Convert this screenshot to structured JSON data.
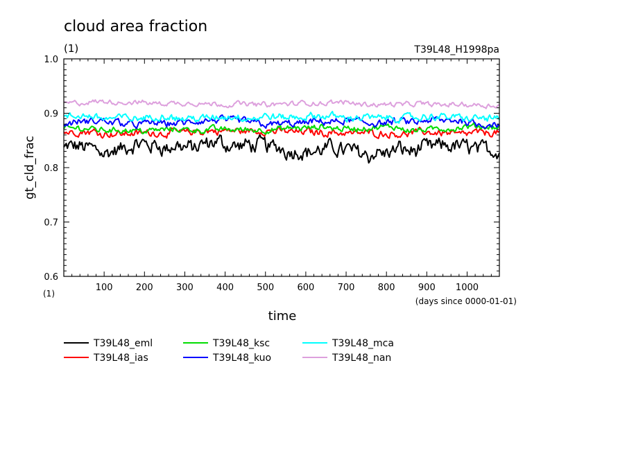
{
  "title": "cloud area fraction",
  "title_units": "(1)",
  "run_label": "T39L48_H1998pa",
  "x_axis": {
    "label": "time",
    "units": "(days since 0000-01-01)"
  },
  "y_axis": {
    "label": "gt_cld_frac",
    "units": "(1)"
  },
  "chart_data": {
    "type": "line",
    "title": "cloud area fraction",
    "xlabel": "time",
    "ylabel": "gt_cld_frac",
    "xlim": [
      0,
      1080
    ],
    "ylim": [
      0.6,
      1.0
    ],
    "x_ticks": [
      100,
      200,
      300,
      400,
      500,
      600,
      700,
      800,
      900,
      1000
    ],
    "y_ticks": [
      "0.6",
      "0.7",
      "0.8",
      "0.9",
      "1.0"
    ],
    "grid": false,
    "legend_position": "bottom",
    "series": [
      {
        "name": "T39L48_eml",
        "color": "#000000",
        "mean": 0.835,
        "noise": 0.013,
        "min": 0.795,
        "max": 0.87
      },
      {
        "name": "T39L48_ias",
        "color": "#ff0000",
        "mean": 0.866,
        "noise": 0.006,
        "min": 0.85,
        "max": 0.885
      },
      {
        "name": "T39L48_ksc",
        "color": "#00dd00",
        "mean": 0.871,
        "noise": 0.005,
        "min": 0.86,
        "max": 0.885
      },
      {
        "name": "T39L48_kuo",
        "color": "#0000ff",
        "mean": 0.882,
        "noise": 0.006,
        "min": 0.865,
        "max": 0.905
      },
      {
        "name": "T39L48_mca",
        "color": "#00ffff",
        "mean": 0.891,
        "noise": 0.006,
        "min": 0.875,
        "max": 0.91
      },
      {
        "name": "T39L48_nan",
        "color": "#dda0dd",
        "mean": 0.918,
        "noise": 0.004,
        "min": 0.905,
        "max": 0.932
      }
    ]
  }
}
